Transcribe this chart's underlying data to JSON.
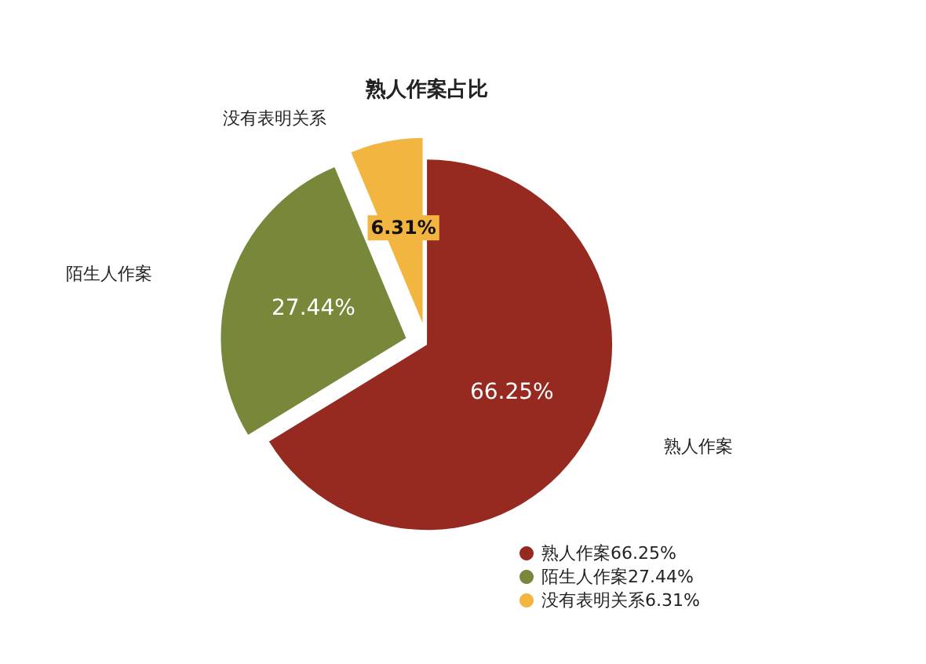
{
  "chart_data": {
    "type": "pie",
    "title": "熟人作案占比",
    "categories": [
      "熟人作案",
      "陌生人作案",
      "没有表明关系"
    ],
    "values": [
      66.25,
      27.44,
      6.31
    ],
    "value_labels": [
      "66.25%",
      "27.44%",
      "6.31%"
    ],
    "colors": [
      "#962a20",
      "#77883a",
      "#f2b53f"
    ],
    "data_labels": true,
    "legend": "bottom right"
  }
}
